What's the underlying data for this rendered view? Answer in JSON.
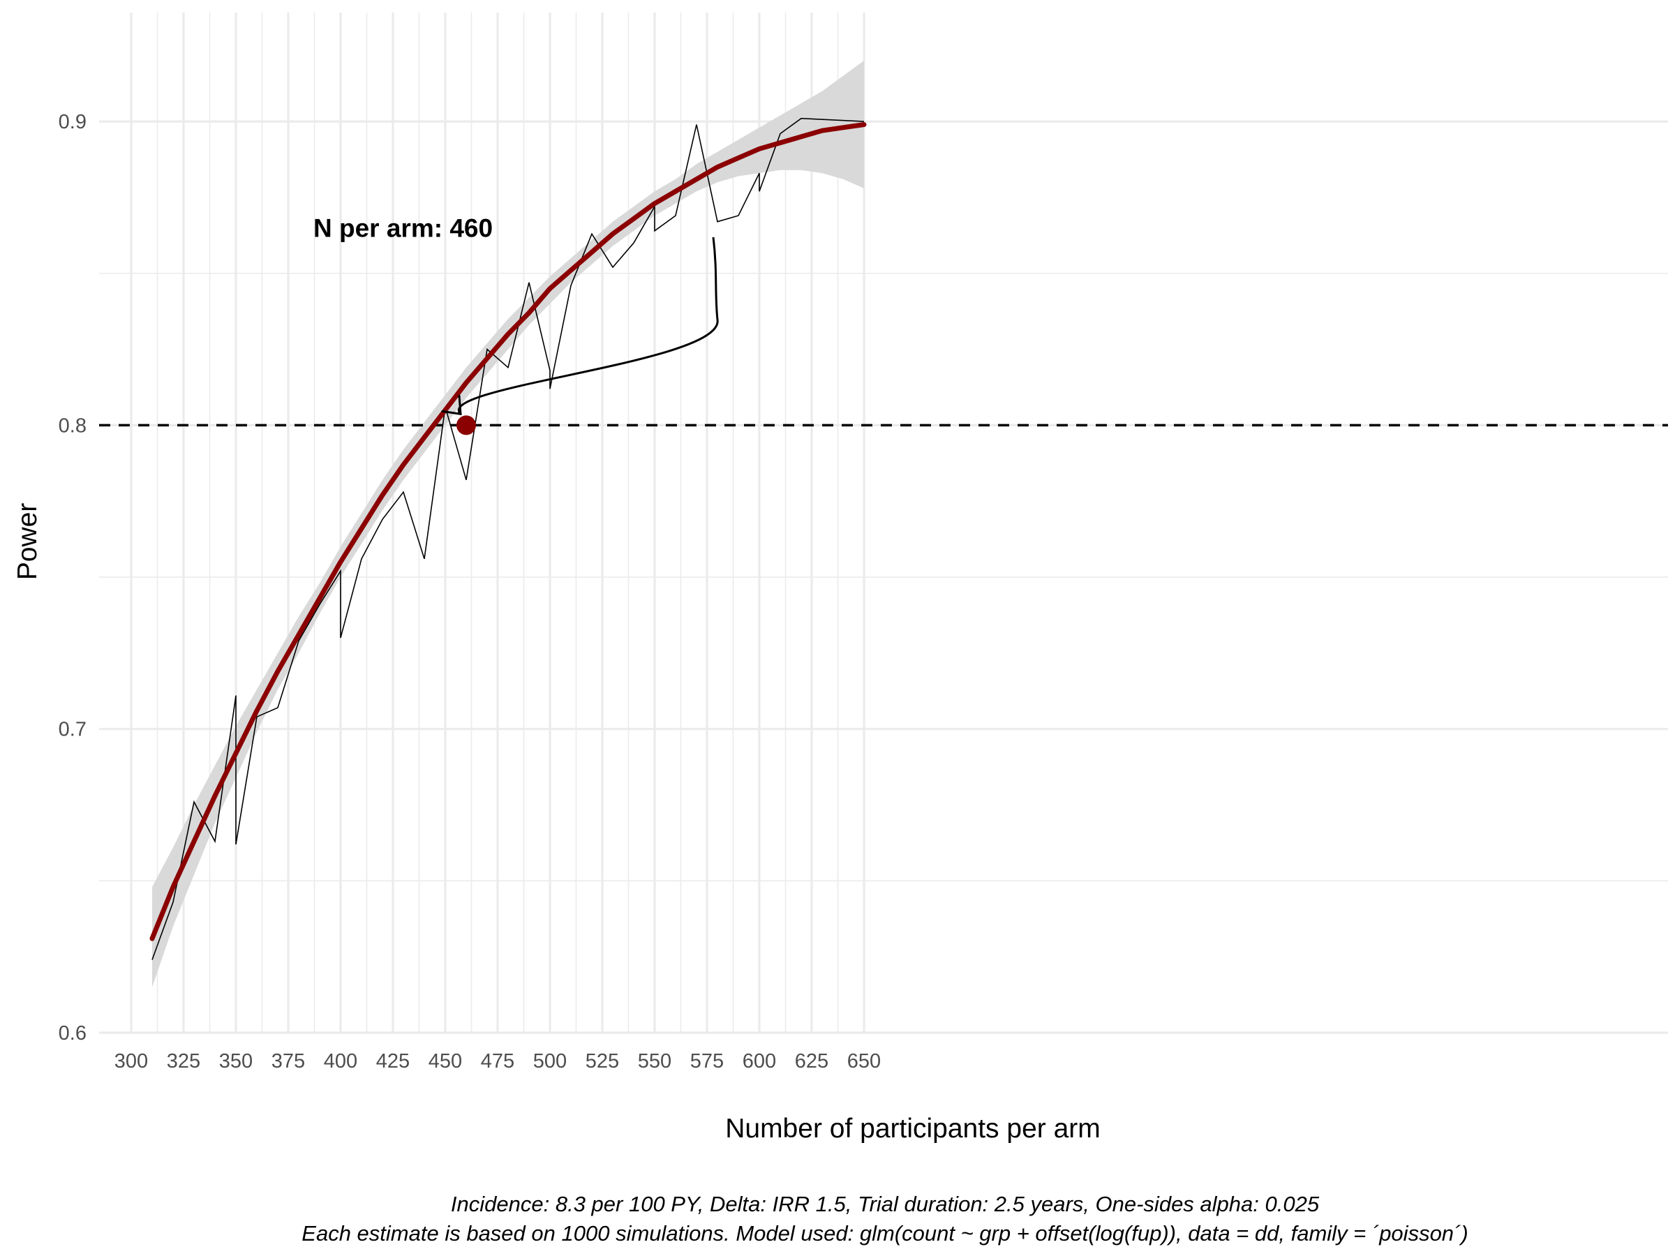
{
  "chart_data": {
    "type": "line",
    "xlabel": "Number of participants per arm",
    "ylabel": "Power",
    "xlim": [
      295,
      655
    ],
    "ylim": [
      0.6,
      0.93
    ],
    "x_ticks": [
      300,
      325,
      350,
      375,
      400,
      425,
      450,
      475,
      500,
      525,
      550,
      575,
      600,
      625,
      650
    ],
    "x_tick_labels": [
      "300",
      "325",
      "350",
      "375",
      "400",
      "425",
      "450",
      "475",
      "500",
      "525",
      "550",
      "575",
      "600",
      "625",
      "650"
    ],
    "y_ticks": [
      0.6,
      0.7,
      0.8,
      0.9
    ],
    "y_tick_labels": [
      "0.6",
      "0.7",
      "0.8",
      "0.9"
    ],
    "grid": true,
    "reference_line": {
      "y": 0.8,
      "style": "dashed",
      "color": "#000000"
    },
    "series": [
      {
        "role": "simulated",
        "color": "#000000",
        "points": [
          [
            310,
            0.624
          ],
          [
            320,
            0.643
          ],
          [
            330,
            0.676
          ],
          [
            340,
            0.663
          ],
          [
            350,
            0.711
          ],
          [
            350,
            0.662
          ],
          [
            360,
            0.704
          ],
          [
            370,
            0.707
          ],
          [
            380,
            0.729
          ],
          [
            390,
            0.741
          ],
          [
            400,
            0.752
          ],
          [
            400,
            0.73
          ],
          [
            410,
            0.756
          ],
          [
            420,
            0.769
          ],
          [
            430,
            0.778
          ],
          [
            440,
            0.756
          ],
          [
            450,
            0.806
          ],
          [
            460,
            0.782
          ],
          [
            470,
            0.825
          ],
          [
            480,
            0.819
          ],
          [
            490,
            0.847
          ],
          [
            500,
            0.818
          ],
          [
            500,
            0.812
          ],
          [
            510,
            0.846
          ],
          [
            520,
            0.863
          ],
          [
            530,
            0.852
          ],
          [
            540,
            0.86
          ],
          [
            550,
            0.872
          ],
          [
            550,
            0.864
          ],
          [
            560,
            0.869
          ],
          [
            570,
            0.899
          ],
          [
            580,
            0.867
          ],
          [
            590,
            0.869
          ],
          [
            600,
            0.883
          ],
          [
            600,
            0.877
          ],
          [
            610,
            0.896
          ],
          [
            620,
            0.901
          ],
          [
            650,
            0.9
          ]
        ]
      },
      {
        "role": "smooth_fit",
        "color": "#8b0000",
        "points": [
          [
            310,
            0.631
          ],
          [
            320,
            0.648
          ],
          [
            330,
            0.663
          ],
          [
            340,
            0.678
          ],
          [
            350,
            0.692
          ],
          [
            360,
            0.706
          ],
          [
            370,
            0.719
          ],
          [
            380,
            0.731
          ],
          [
            390,
            0.743
          ],
          [
            400,
            0.755
          ],
          [
            410,
            0.766
          ],
          [
            420,
            0.777
          ],
          [
            430,
            0.787
          ],
          [
            440,
            0.796
          ],
          [
            450,
            0.805
          ],
          [
            460,
            0.814
          ],
          [
            470,
            0.822
          ],
          [
            480,
            0.83
          ],
          [
            490,
            0.837
          ],
          [
            500,
            0.845
          ],
          [
            510,
            0.851
          ],
          [
            520,
            0.857
          ],
          [
            530,
            0.863
          ],
          [
            540,
            0.868
          ],
          [
            550,
            0.873
          ],
          [
            560,
            0.877
          ],
          [
            570,
            0.881
          ],
          [
            580,
            0.885
          ],
          [
            590,
            0.888
          ],
          [
            600,
            0.891
          ],
          [
            610,
            0.893
          ],
          [
            620,
            0.895
          ],
          [
            630,
            0.897
          ],
          [
            640,
            0.898
          ],
          [
            650,
            0.899
          ]
        ],
        "ci_lower": [
          [
            310,
            0.615
          ],
          [
            320,
            0.635
          ],
          [
            330,
            0.652
          ],
          [
            340,
            0.669
          ],
          [
            350,
            0.684
          ],
          [
            360,
            0.699
          ],
          [
            370,
            0.713
          ],
          [
            380,
            0.725
          ],
          [
            390,
            0.738
          ],
          [
            400,
            0.75
          ],
          [
            410,
            0.761
          ],
          [
            420,
            0.772
          ],
          [
            430,
            0.782
          ],
          [
            440,
            0.791
          ],
          [
            450,
            0.8
          ],
          [
            460,
            0.809
          ],
          [
            470,
            0.817
          ],
          [
            480,
            0.825
          ],
          [
            490,
            0.833
          ],
          [
            500,
            0.84
          ],
          [
            510,
            0.847
          ],
          [
            520,
            0.853
          ],
          [
            530,
            0.859
          ],
          [
            540,
            0.864
          ],
          [
            550,
            0.869
          ],
          [
            560,
            0.873
          ],
          [
            570,
            0.877
          ],
          [
            580,
            0.88
          ],
          [
            590,
            0.882
          ],
          [
            600,
            0.883
          ],
          [
            610,
            0.884
          ],
          [
            620,
            0.884
          ],
          [
            630,
            0.883
          ],
          [
            640,
            0.881
          ],
          [
            650,
            0.878
          ]
        ],
        "ci_upper": [
          [
            310,
            0.648
          ],
          [
            320,
            0.661
          ],
          [
            330,
            0.675
          ],
          [
            340,
            0.688
          ],
          [
            350,
            0.701
          ],
          [
            360,
            0.713
          ],
          [
            370,
            0.725
          ],
          [
            380,
            0.737
          ],
          [
            390,
            0.748
          ],
          [
            400,
            0.76
          ],
          [
            410,
            0.771
          ],
          [
            420,
            0.782
          ],
          [
            430,
            0.792
          ],
          [
            440,
            0.801
          ],
          [
            450,
            0.81
          ],
          [
            460,
            0.819
          ],
          [
            470,
            0.827
          ],
          [
            480,
            0.835
          ],
          [
            490,
            0.842
          ],
          [
            500,
            0.849
          ],
          [
            510,
            0.855
          ],
          [
            520,
            0.861
          ],
          [
            530,
            0.867
          ],
          [
            540,
            0.872
          ],
          [
            550,
            0.877
          ],
          [
            560,
            0.881
          ],
          [
            570,
            0.886
          ],
          [
            580,
            0.89
          ],
          [
            590,
            0.894
          ],
          [
            600,
            0.898
          ],
          [
            610,
            0.902
          ],
          [
            620,
            0.906
          ],
          [
            630,
            0.91
          ],
          [
            640,
            0.915
          ],
          [
            650,
            0.92
          ]
        ],
        "ci_color": "#d9d9d9"
      }
    ],
    "highlight_point": {
      "x": 460,
      "y": 0.8,
      "color": "#8b0000"
    },
    "annotation": {
      "text": "N per arm: 460",
      "x": 387,
      "y": 0.862,
      "arrow_to": [
        460,
        0.8
      ]
    },
    "caption": [
      "Incidence: 8.3 per 100 PY, Delta: IRR 1.5, Trial duration: 2.5 years, One-sides alpha: 0.025",
      "Each estimate is based on 1000 simulations. Model used: glm(count ~ grp + offset(log(fup)), data = dd, family = ´poisson´)"
    ]
  }
}
